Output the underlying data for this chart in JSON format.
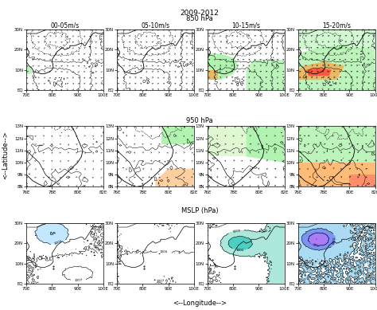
{
  "title_main": "2009-2012",
  "row1_title": "850 hPa",
  "row2_title": "950 hPa",
  "row3_title": "MSLP (hPa)",
  "col_labels": [
    "00-05m/s",
    "05-10m/s",
    "10-15m/s",
    "15-20m/s"
  ],
  "xlabel": "<--Longitude-->",
  "ylabel": "<--Latitude-->",
  "background_color": "#ffffff",
  "fig_width": 4.74,
  "fig_height": 3.89,
  "row1_ylabels": [
    "EQ",
    "10N",
    "20N",
    "30N"
  ],
  "row1_xlabels": [
    "70E",
    "80E",
    "90E",
    "100E"
  ],
  "row2_ylabels": [
    "8N",
    "9N",
    "10N",
    "11N",
    "12N",
    "13N"
  ],
  "row2_xlabels": [
    "76E",
    "78E",
    "80E",
    "82E"
  ],
  "row3_ylabels": [
    "EQ",
    "10N",
    "20N",
    "30N"
  ],
  "row3_xlabels": [
    "70E",
    "80E",
    "90E",
    "100E"
  ],
  "text_color": "#000000",
  "font_size_main_title": 6.5,
  "font_size_row_title": 6,
  "font_size_col_label": 5.5,
  "font_size_tick_label": 4,
  "font_size_xlabel": 6,
  "font_size_ylabel": 6
}
